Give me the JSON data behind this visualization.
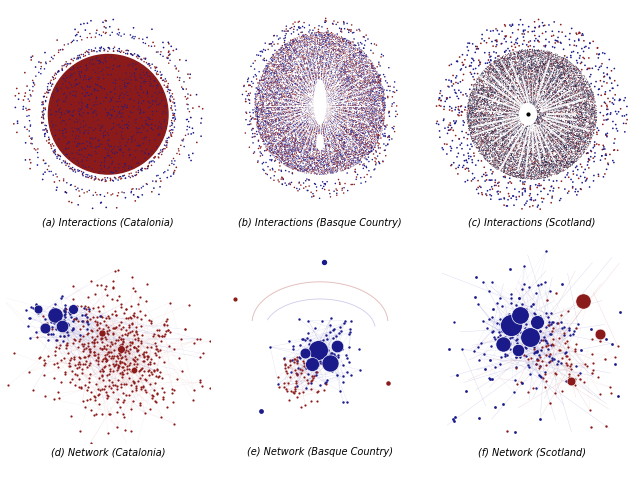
{
  "figsize": [
    6.4,
    4.87
  ],
  "dpi": 100,
  "nrows": 2,
  "ncols": 3,
  "captions": [
    "(a) Interactions (Catalonia)",
    "(b) Interactions (Basque Country)",
    "(c) Interactions (Scotland)",
    "(d) Network (Catalonia)",
    "(e) Network (Basque Country)",
    "(f) Network (Scotland)"
  ],
  "caption_fontsize": 7.0,
  "bg_color": "#ffffff",
  "red": "#8B1A1A",
  "blue": "#1A1A8B",
  "dark_red": "#5a0000",
  "dark_blue": "#00006B",
  "light_red": "#cc8080",
  "light_blue": "#8080cc"
}
